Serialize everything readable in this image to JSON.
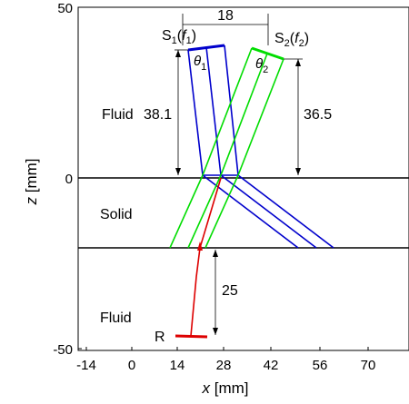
{
  "figure": {
    "xlabel_var": "x",
    "xlabel_unit": " [mm]",
    "ylabel_var": "z",
    "ylabel_unit": " [mm]",
    "x_ticks": [
      "-14",
      "0",
      "14",
      "28",
      "42",
      "56",
      "70"
    ],
    "y_ticks": [
      "50",
      "0",
      "-50"
    ],
    "regions": {
      "top": "Fluid",
      "middle": "Solid",
      "bottom": "Fluid"
    },
    "sources": {
      "s1": {
        "S": "S",
        "sub": "1",
        "paren_open": "(",
        "f": "f",
        "fsub": "1",
        "paren_close": ")"
      },
      "s2": {
        "S": "S",
        "sub": "2",
        "paren_open": "(",
        "f": "f",
        "fsub": "2",
        "paren_close": ")"
      }
    },
    "angles": {
      "theta1": {
        "sym": "θ",
        "sub": "1"
      },
      "theta2": {
        "sym": "θ",
        "sub": "2"
      }
    },
    "receiver": "R",
    "dimensions": {
      "separation": "18",
      "s1_height": "38.1",
      "s2_height": "36.5",
      "receiver_depth": "25"
    },
    "colors": {
      "s1_rays": "#0000cc",
      "s2_rays": "#00dd00",
      "received_ray": "#dd0000",
      "interface": "#000000"
    }
  }
}
